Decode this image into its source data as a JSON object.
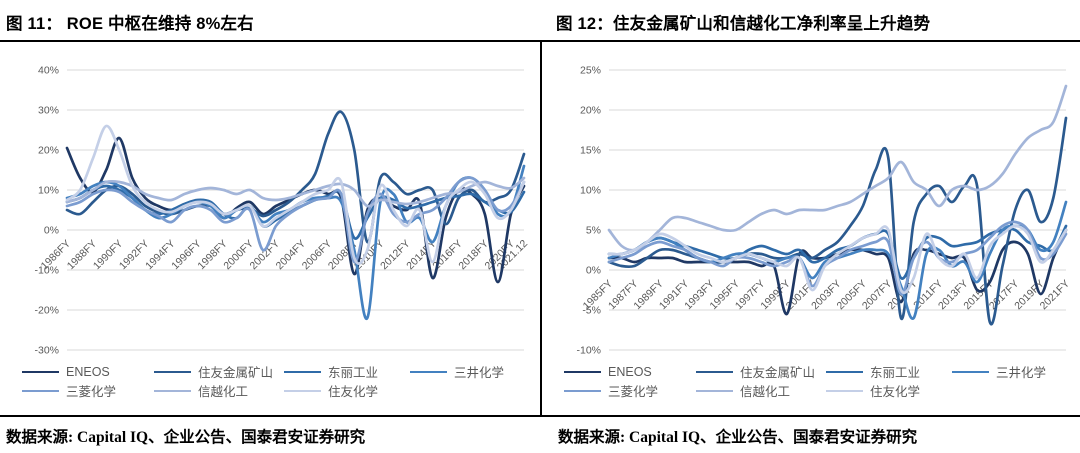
{
  "page": {
    "background": "#ffffff",
    "grid_color": "#d9d9d9",
    "axis_text_color": "#595959"
  },
  "chart_data": [
    {
      "type": "line",
      "title": "图 11：  ROE 中枢在维持 8%左右",
      "source": "数据来源: Capital IQ、企业公告、国泰君安证券研究",
      "ylim": [
        -30,
        40
      ],
      "ytick_step": 10,
      "y_tick_labels": [
        "40%",
        "30%",
        "20%",
        "10%",
        "0%",
        "-10%",
        "-20%",
        "-30%"
      ],
      "x_first_year": 1986,
      "x_count": 36,
      "x_ticks": [
        {
          "i": 0,
          "label": "1986FY"
        },
        {
          "i": 2,
          "label": "1988FY"
        },
        {
          "i": 4,
          "label": "1990FY"
        },
        {
          "i": 6,
          "label": "1992FY"
        },
        {
          "i": 8,
          "label": "1994FY"
        },
        {
          "i": 10,
          "label": "1996FY"
        },
        {
          "i": 12,
          "label": "1998FY"
        },
        {
          "i": 14,
          "label": "2000FY"
        },
        {
          "i": 16,
          "label": "2002FY"
        },
        {
          "i": 18,
          "label": "2004FY"
        },
        {
          "i": 20,
          "label": "2006FY"
        },
        {
          "i": 22,
          "label": "2008FY"
        },
        {
          "i": 24,
          "label": "2010FY"
        },
        {
          "i": 26,
          "label": "2012FY"
        },
        {
          "i": 28,
          "label": "2014FY"
        },
        {
          "i": 30,
          "label": "2016FY"
        },
        {
          "i": 32,
          "label": "2018FY"
        },
        {
          "i": 34,
          "label": "2020FY"
        },
        {
          "i": 35,
          "label": "2021.12"
        }
      ],
      "legend_position": "bottom",
      "grid": true,
      "series": [
        {
          "name": "ENEOS",
          "color": "#1f3864",
          "values": [
            20.5,
            13,
            9.5,
            15,
            23,
            13,
            8,
            6,
            5,
            6.5,
            7,
            6.5,
            3,
            5.5,
            7,
            4,
            6,
            7.5,
            9,
            10,
            9,
            8,
            -11,
            5,
            8,
            6,
            5,
            7,
            -12,
            3,
            10,
            9,
            4,
            -13,
            4,
            11
          ]
        },
        {
          "name": "住友金属矿山",
          "color": "#2b5a8f",
          "values": [
            5,
            4,
            7,
            10,
            11,
            9,
            6,
            4.5,
            4,
            5,
            6,
            6,
            4,
            5,
            5.5,
            3.5,
            5,
            7,
            10,
            14,
            24,
            29.5,
            20,
            -3,
            13,
            12,
            9,
            10,
            10,
            1.5,
            8,
            10,
            7,
            8,
            10,
            19
          ]
        },
        {
          "name": "东丽工业",
          "color": "#2f6ba8",
          "values": [
            7,
            8,
            10,
            11,
            10,
            8,
            5,
            4,
            5,
            6.5,
            7.5,
            7,
            4,
            3,
            6,
            1,
            2.5,
            4.5,
            6,
            7.5,
            8.5,
            9,
            -2,
            3,
            8,
            7.5,
            5.5,
            6,
            7,
            8,
            8.5,
            9,
            7,
            5,
            4.5,
            9.5
          ]
        },
        {
          "name": "三井化学",
          "color": "#4381c0",
          "values": [
            8,
            9,
            11,
            12,
            11,
            8,
            5,
            3,
            4,
            6,
            7,
            6,
            3,
            5,
            6,
            2,
            4,
            5,
            7,
            8,
            8,
            7,
            -5,
            -22,
            7,
            9,
            2,
            3,
            -3,
            6,
            12,
            13,
            10,
            4,
            5,
            16
          ]
        },
        {
          "name": "三菱化学",
          "color": "#7b9cd0",
          "values": [
            6,
            7,
            9,
            10,
            9.5,
            7,
            5,
            3.5,
            2,
            5,
            6,
            5,
            2,
            3,
            5,
            -5,
            1,
            4,
            6,
            7.5,
            8,
            9,
            -8,
            4,
            9,
            4,
            2,
            4,
            5,
            8,
            12,
            13,
            10,
            5,
            6,
            12
          ]
        },
        {
          "name": "信越化工",
          "color": "#a3b5d9",
          "values": [
            7,
            8,
            10,
            12,
            12,
            11,
            9,
            8,
            7.5,
            9,
            10,
            10.5,
            10,
            9,
            10,
            8,
            7.5,
            8,
            9,
            10,
            11,
            11.5,
            10,
            6,
            7.5,
            7,
            6.5,
            7,
            8,
            9,
            9.5,
            11,
            12,
            11,
            10.5,
            13
          ]
        },
        {
          "name": "住友化学",
          "color": "#c4cfe7",
          "values": [
            7.5,
            10,
            18,
            26,
            20,
            11,
            7,
            5,
            4.5,
            6,
            7,
            6.5,
            4,
            5,
            6,
            1,
            3,
            5,
            7,
            9,
            10,
            12,
            -7,
            -5,
            11,
            5,
            1,
            5,
            -8,
            6,
            10,
            12,
            9,
            3,
            5,
            12
          ]
        }
      ]
    },
    {
      "type": "line",
      "title": "图 12：住友金属矿山和信越化工净利率呈上升趋势",
      "source": "数据来源: Capital IQ、企业公告、国泰君安证券研究",
      "ylim": [
        -10,
        25
      ],
      "ytick_step": 5,
      "y_tick_labels": [
        "25%",
        "20%",
        "15%",
        "10%",
        "5%",
        "0%",
        "-5%",
        "-10%"
      ],
      "x_first_year": 1985,
      "x_count": 37,
      "x_ticks": [
        {
          "i": 0,
          "label": "1985FY"
        },
        {
          "i": 2,
          "label": "1987FY"
        },
        {
          "i": 4,
          "label": "1989FY"
        },
        {
          "i": 6,
          "label": "1991FY"
        },
        {
          "i": 8,
          "label": "1993FY"
        },
        {
          "i": 10,
          "label": "1995FY"
        },
        {
          "i": 12,
          "label": "1997FY"
        },
        {
          "i": 14,
          "label": "1999FY"
        },
        {
          "i": 16,
          "label": "2001FY"
        },
        {
          "i": 18,
          "label": "2003FY"
        },
        {
          "i": 20,
          "label": "2005FY"
        },
        {
          "i": 22,
          "label": "2007FY"
        },
        {
          "i": 24,
          "label": "2009FY"
        },
        {
          "i": 26,
          "label": "2011FY"
        },
        {
          "i": 28,
          "label": "2013FY"
        },
        {
          "i": 30,
          "label": "2015FY"
        },
        {
          "i": 32,
          "label": "2017FY"
        },
        {
          "i": 34,
          "label": "2019FY"
        },
        {
          "i": 36,
          "label": "2021FY"
        }
      ],
      "legend_position": "bottom",
      "grid": true,
      "series": [
        {
          "name": "ENEOS",
          "color": "#1f3864",
          "values": [
            1.5,
            1.5,
            1,
            1.5,
            1.5,
            1.5,
            1,
            1,
            1,
            1,
            1,
            1,
            0.5,
            0.5,
            -5.5,
            2,
            1.5,
            1.5,
            2,
            2.5,
            2.5,
            2,
            1.5,
            -4,
            2,
            2.5,
            2,
            1.5,
            1.5,
            -2.5,
            -1.5,
            2.5,
            3.5,
            2,
            -3,
            1.5,
            5
          ]
        },
        {
          "name": "住友金属矿山",
          "color": "#2b5a8f",
          "values": [
            1,
            0.5,
            0.5,
            1.5,
            2.5,
            2.5,
            2,
            1.5,
            1,
            1,
            1.5,
            2,
            2,
            1.5,
            1.5,
            2,
            1.5,
            2.5,
            3.5,
            5.5,
            8,
            12.5,
            14,
            -6,
            6,
            9.5,
            10.5,
            8.5,
            10.5,
            10.5,
            -6.5,
            0.5,
            7.5,
            10,
            6,
            9,
            19
          ]
        },
        {
          "name": "东丽工业",
          "color": "#2f6ba8",
          "values": [
            2,
            2,
            2.5,
            3.5,
            4,
            3.5,
            3,
            2.5,
            2,
            1.5,
            1.5,
            2.5,
            3,
            2.5,
            2,
            2.5,
            1,
            1.5,
            2.5,
            3,
            4,
            4.5,
            4.5,
            -1,
            1.5,
            4,
            4,
            3,
            3.2,
            3.5,
            4.5,
            5,
            5,
            3.5,
            3,
            2.5,
            5.5
          ]
        },
        {
          "name": "三井化学",
          "color": "#4381c0",
          "values": [
            1.5,
            2,
            2.5,
            3.5,
            4,
            3.5,
            2.5,
            1.5,
            1,
            1.5,
            2,
            2,
            1.5,
            1,
            1.5,
            1.5,
            -1,
            1,
            1.5,
            2,
            2.5,
            2.5,
            2,
            -2,
            -6,
            2,
            2.5,
            0.5,
            1,
            -1.5,
            2,
            5,
            5.5,
            5,
            2.5,
            3.5,
            8.5
          ]
        },
        {
          "name": "三菱化学",
          "color": "#7b9cd0",
          "values": [
            1,
            1.5,
            2,
            3,
            3.5,
            3,
            2.5,
            1.5,
            1,
            0.5,
            1.5,
            1.5,
            1,
            0.5,
            1,
            1.5,
            -2,
            0.5,
            1.5,
            2.5,
            3,
            3.5,
            3.5,
            -3,
            1.5,
            3.5,
            1.5,
            1,
            2,
            2.5,
            4,
            5.5,
            6,
            5,
            1.5,
            2,
            4.5
          ]
        },
        {
          "name": "信越化工",
          "color": "#a3b5d9",
          "values": [
            5,
            3,
            2.5,
            3.5,
            5,
            6.5,
            6.5,
            6,
            5.5,
            5,
            5,
            6,
            7,
            7.5,
            7,
            7.5,
            7.5,
            7.5,
            8,
            8.5,
            9.5,
            10.5,
            11.5,
            13.5,
            11,
            10,
            8,
            10,
            10.5,
            10,
            10.5,
            12,
            14.5,
            16.5,
            17.5,
            18.5,
            23
          ]
        },
        {
          "name": "住友化学",
          "color": "#c4cfe7",
          "values": [
            2,
            2,
            2.5,
            3.5,
            4.5,
            4,
            3,
            2,
            1.5,
            1,
            1.5,
            2,
            1.5,
            1,
            0.5,
            1.5,
            -2.5,
            0.5,
            2,
            3,
            4,
            4.5,
            5,
            -2.5,
            -1,
            4.5,
            1.5,
            0.5,
            2,
            -1,
            3,
            4.5,
            5.5,
            4.5,
            1,
            2.5,
            5
          ]
        }
      ]
    }
  ]
}
